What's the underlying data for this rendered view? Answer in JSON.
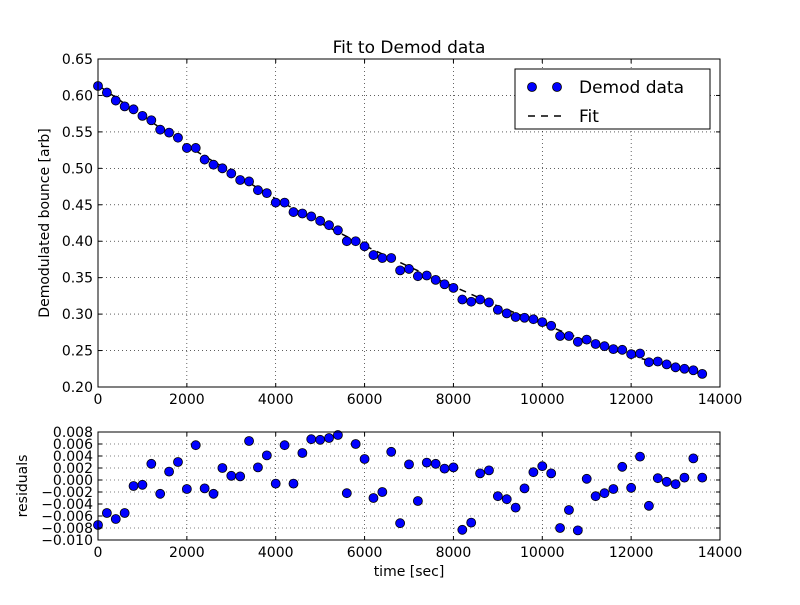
{
  "chart_data": [
    {
      "type": "scatter",
      "title": "Fit to Demod data",
      "xlabel": "",
      "ylabel": "Demodulated bounce [arb]",
      "xlim": [
        0,
        14000
      ],
      "ylim": [
        0.2,
        0.65
      ],
      "xticks": [
        0,
        2000,
        4000,
        6000,
        8000,
        10000,
        12000,
        14000
      ],
      "xtick_labels": [
        "0",
        "2000",
        "4000",
        "6000",
        "8000",
        "10000",
        "12000",
        "14000"
      ],
      "yticks": [
        0.2,
        0.25,
        0.3,
        0.35,
        0.4,
        0.45,
        0.5,
        0.55,
        0.6,
        0.65
      ],
      "ytick_labels": [
        "0.20",
        "0.25",
        "0.30",
        "0.35",
        "0.40",
        "0.45",
        "0.50",
        "0.55",
        "0.60",
        "0.65"
      ],
      "grid": true,
      "legend_position": "top-right",
      "series": [
        {
          "name": "Demod data",
          "style": "markers",
          "color": "#0000ff",
          "x": [
            0,
            200,
            400,
            600,
            800,
            1000,
            1200,
            1400,
            1600,
            1800,
            2000,
            2200,
            2400,
            2600,
            2800,
            3000,
            3200,
            3400,
            3600,
            3800,
            4000,
            4200,
            4400,
            4600,
            4800,
            5000,
            5200,
            5400,
            5600,
            5800,
            6000,
            6200,
            6400,
            6600,
            6800,
            7000,
            7200,
            7400,
            7600,
            7800,
            8000,
            8200,
            8400,
            8600,
            8800,
            9000,
            9200,
            9400,
            9600,
            9800,
            10000,
            10200,
            10400,
            10600,
            10800,
            11000,
            11200,
            11400,
            11600,
            11800,
            12000,
            12200,
            12400,
            12600,
            12800,
            13000,
            13200,
            13400,
            13600
          ],
          "y": [
            0.613,
            0.604,
            0.593,
            0.585,
            0.581,
            0.572,
            0.566,
            0.553,
            0.549,
            0.542,
            0.528,
            0.528,
            0.512,
            0.505,
            0.5,
            0.493,
            0.484,
            0.482,
            0.47,
            0.466,
            0.453,
            0.453,
            0.44,
            0.438,
            0.434,
            0.428,
            0.422,
            0.415,
            0.4,
            0.4,
            0.393,
            0.381,
            0.377,
            0.377,
            0.36,
            0.362,
            0.352,
            0.353,
            0.347,
            0.341,
            0.336,
            0.32,
            0.317,
            0.32,
            0.316,
            0.306,
            0.301,
            0.296,
            0.295,
            0.293,
            0.289,
            0.284,
            0.27,
            0.27,
            0.262,
            0.265,
            0.259,
            0.256,
            0.252,
            0.251,
            0.245,
            0.246,
            0.234,
            0.235,
            0.231,
            0.227,
            0.225,
            0.223,
            0.218
          ]
        },
        {
          "name": "Fit",
          "style": "dashed-line",
          "color": "#000000",
          "x": [
            0,
            1000,
            2000,
            3000,
            4000,
            5000,
            6000,
            7000,
            8000,
            9000,
            10000,
            11000,
            12000,
            13000,
            13600
          ],
          "y": [
            0.614,
            0.572,
            0.531,
            0.495,
            0.458,
            0.425,
            0.394,
            0.365,
            0.338,
            0.311,
            0.287,
            0.263,
            0.243,
            0.226,
            0.218
          ]
        }
      ]
    },
    {
      "type": "scatter",
      "title": "",
      "xlabel": "time [sec]",
      "ylabel": "residuals",
      "xlim": [
        0,
        14000
      ],
      "ylim": [
        -0.01,
        0.008
      ],
      "xticks": [
        0,
        2000,
        4000,
        6000,
        8000,
        10000,
        12000,
        14000
      ],
      "xtick_labels": [
        "0",
        "2000",
        "4000",
        "6000",
        "8000",
        "10000",
        "12000",
        "14000"
      ],
      "yticks": [
        -0.01,
        -0.008,
        -0.006,
        -0.004,
        -0.002,
        0.0,
        0.002,
        0.004,
        0.006,
        0.008
      ],
      "ytick_labels": [
        "−0.010",
        "−0.008",
        "−0.006",
        "−0.004",
        "−0.002",
        "0.000",
        "0.002",
        "0.004",
        "0.006",
        "0.008"
      ],
      "grid": true,
      "series": [
        {
          "name": "",
          "style": "markers",
          "color": "#0000ff",
          "x": [
            0,
            200,
            400,
            600,
            800,
            1000,
            1200,
            1400,
            1600,
            1800,
            2000,
            2200,
            2400,
            2600,
            2800,
            3000,
            3200,
            3400,
            3600,
            3800,
            4000,
            4200,
            4400,
            4600,
            4800,
            5000,
            5200,
            5400,
            5600,
            5800,
            6000,
            6200,
            6400,
            6600,
            6800,
            7000,
            7200,
            7400,
            7600,
            7800,
            8000,
            8200,
            8400,
            8600,
            8800,
            9000,
            9200,
            9400,
            9600,
            9800,
            10000,
            10200,
            10400,
            10600,
            10800,
            11000,
            11200,
            11400,
            11600,
            11800,
            12000,
            12200,
            12400,
            12600,
            12800,
            13000,
            13200,
            13400,
            13600
          ],
          "y": [
            -0.0075,
            -0.0055,
            -0.0065,
            -0.0055,
            -0.001,
            -0.0008,
            0.0027,
            -0.0023,
            0.0014,
            0.003,
            -0.0015,
            0.0058,
            -0.0014,
            -0.0023,
            0.002,
            0.0007,
            0.0006,
            0.0065,
            0.0021,
            0.0041,
            -0.0006,
            0.0058,
            -0.0006,
            0.0045,
            0.0068,
            0.0067,
            0.007,
            0.0075,
            -0.0022,
            0.006,
            0.0035,
            -0.003,
            -0.002,
            0.0047,
            -0.0072,
            0.0026,
            -0.0035,
            0.0029,
            0.0027,
            0.0019,
            0.0021,
            -0.0083,
            -0.0071,
            0.0011,
            0.0016,
            -0.0027,
            -0.0032,
            -0.0046,
            -0.0014,
            0.0013,
            0.0023,
            0.0011,
            -0.008,
            -0.005,
            -0.0084,
            0.0002,
            -0.0027,
            -0.0022,
            -0.0015,
            0.0022,
            -0.0013,
            0.0039,
            -0.0043,
            0.0003,
            -0.0003,
            -0.0007,
            0.0004,
            0.0036,
            0.0004
          ]
        }
      ]
    }
  ]
}
